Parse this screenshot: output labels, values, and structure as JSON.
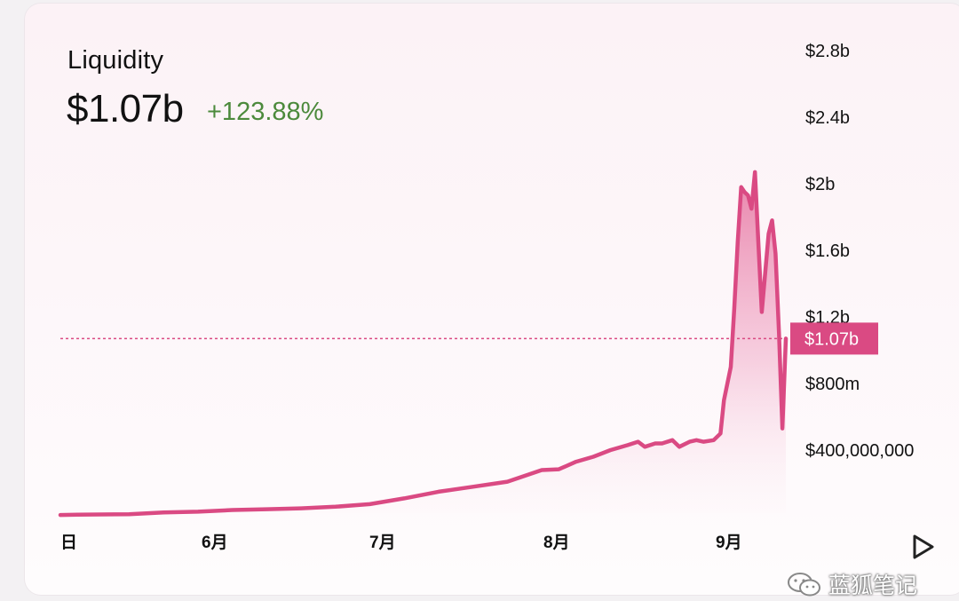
{
  "header": {
    "title": "Liquidity",
    "value": "$1.07b",
    "change": "+123.88%"
  },
  "colors": {
    "line": "#da4a83",
    "area_top": "#e77aa6",
    "positive": "#4c8a3c",
    "current_marker": "#da4a83"
  },
  "watermark": {
    "text": "蓝狐笔记"
  },
  "chart_data": {
    "type": "area",
    "title": "Liquidity",
    "x_ticks": [
      "日",
      "6月",
      "7月",
      "8月",
      "9月"
    ],
    "y_ticks": [
      {
        "value": 400000000,
        "label": "$400,000,000"
      },
      {
        "value": 800000000,
        "label": "$800m"
      },
      {
        "value": 1200000000,
        "label": "$1.2b"
      },
      {
        "value": 1600000000,
        "label": "$1.6b"
      },
      {
        "value": 2000000000,
        "label": "$2b"
      },
      {
        "value": 2400000000,
        "label": "$2.4b"
      },
      {
        "value": 2800000000,
        "label": "$2.8b"
      }
    ],
    "ylim": [
      0,
      2800000000
    ],
    "current": {
      "value": 1070000000,
      "label": "$1.07b"
    },
    "x": [
      -5,
      0,
      15,
      25,
      35,
      45,
      55,
      65,
      75,
      85,
      95,
      105,
      115,
      125,
      135,
      140,
      145,
      150,
      155,
      160,
      163,
      165,
      168,
      170,
      173,
      175,
      178,
      180,
      182,
      185,
      187,
      188,
      190,
      191,
      192,
      193,
      194,
      195,
      196,
      197,
      198,
      199,
      201,
      202,
      203,
      204,
      205,
      206
    ],
    "values": [
      10000000,
      12000000,
      15000000,
      25000000,
      30000000,
      40000000,
      45000000,
      50000000,
      60000000,
      75000000,
      110000000,
      150000000,
      180000000,
      210000000,
      280000000,
      285000000,
      330000000,
      360000000,
      400000000,
      430000000,
      450000000,
      420000000,
      440000000,
      440000000,
      460000000,
      420000000,
      450000000,
      460000000,
      450000000,
      460000000,
      500000000,
      700000000,
      900000000,
      1250000000,
      1650000000,
      1980000000,
      1950000000,
      1930000000,
      1850000000,
      2070000000,
      1650000000,
      1230000000,
      1700000000,
      1780000000,
      1580000000,
      1100000000,
      530000000,
      1070000000
    ]
  }
}
